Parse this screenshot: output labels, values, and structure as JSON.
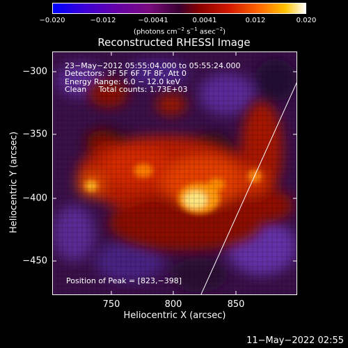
{
  "colorbar": {
    "tick_labels": [
      "−0.020",
      "−0.012",
      "−0.0041",
      "0.0041",
      "0.012",
      "0.020"
    ],
    "units": {
      "prefix": "(photons cm",
      "exp1": "−2",
      "mid1": " s",
      "exp2": "−1",
      "mid2": " asec",
      "exp3": "−2",
      "suffix": ")"
    }
  },
  "image": {
    "title": "Reconstructed RHESSI Image",
    "info_lines": [
      "23−May−2012 05:55:04.000 to 05:55:24.000",
      "Detectors: 3F 5F 6F 7F 8F, Att 0",
      "Energy Range: 6.0 − 12.0 keV",
      "Clean     Total counts: 1.73E+03"
    ],
    "peak_label": "Position of Peak = [823,−398]",
    "x_axis_label": "Heliocentric X (arcsec)",
    "y_axis_label": "Heliocentric Y (arcsec)",
    "x_ticks": [
      "750",
      "800",
      "850"
    ],
    "y_ticks": [
      "−300",
      "−350",
      "−400",
      "−450"
    ]
  },
  "footer": {
    "timestamp": "11−May−2022 02:55"
  }
}
